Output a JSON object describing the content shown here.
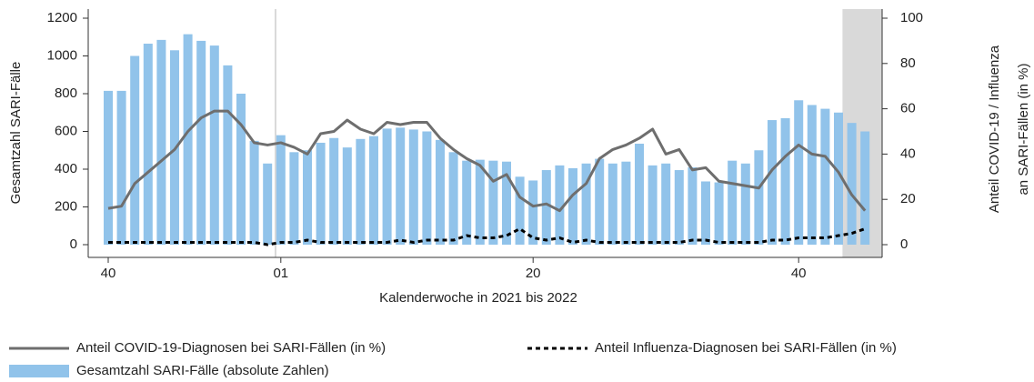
{
  "chart_data": {
    "type": "combo",
    "xlabel": "Kalenderwoche in 2021 bis 2022",
    "ylabel": "Gesamtzahl SARI-Fälle",
    "y2label": [
      "Anteil COVID-19 / Influenza",
      "an SARI-Fällen (in %)"
    ],
    "categories": [
      "40",
      null,
      null,
      null,
      null,
      null,
      null,
      null,
      null,
      null,
      null,
      null,
      null,
      "01",
      null,
      null,
      null,
      null,
      null,
      null,
      null,
      null,
      null,
      null,
      null,
      null,
      null,
      null,
      null,
      null,
      null,
      null,
      "20",
      null,
      null,
      null,
      null,
      null,
      null,
      null,
      null,
      null,
      null,
      null,
      null,
      null,
      null,
      null,
      null,
      null,
      null,
      null,
      "40",
      null,
      null,
      null,
      null,
      null
    ],
    "ylim": [
      0,
      1200
    ],
    "yticks": [
      0,
      200,
      400,
      600,
      800,
      1000,
      1200
    ],
    "y2lim": [
      0,
      100
    ],
    "y2ticks": [
      0,
      20,
      40,
      60,
      80,
      100
    ],
    "series": [
      {
        "name": "Gesamtzahl SARI-Fälle (absolute Zahlen)",
        "type": "bar",
        "color": "#91c3ea",
        "values": [
          815,
          815,
          1000,
          1065,
          1085,
          1030,
          1115,
          1080,
          1055,
          950,
          800,
          550,
          430,
          580,
          490,
          500,
          540,
          565,
          515,
          560,
          575,
          615,
          620,
          610,
          600,
          555,
          490,
          445,
          450,
          445,
          440,
          360,
          340,
          395,
          420,
          405,
          430,
          455,
          430,
          440,
          535,
          420,
          430,
          395,
          410,
          335,
          330,
          445,
          430,
          500,
          660,
          670,
          765,
          740,
          720,
          700,
          645,
          600
        ]
      },
      {
        "name": "Anteil COVID-19-Diagnosen bei SARI-Fällen (in %)",
        "type": "line",
        "axis": "y2",
        "color": "#6e6e6e",
        "dashed": false,
        "values": [
          16,
          17,
          27,
          32,
          37,
          42,
          50,
          56,
          59,
          59,
          53,
          45,
          44,
          45,
          43,
          40,
          49,
          50,
          55,
          51,
          49,
          54,
          53,
          54,
          54,
          47,
          42,
          38,
          35,
          28,
          31,
          21,
          17,
          18,
          15,
          22,
          27,
          38,
          42,
          44,
          47,
          51,
          40,
          42,
          33,
          34,
          28,
          27,
          26,
          25,
          33,
          39,
          44,
          40,
          39,
          32,
          22,
          15
        ]
      },
      {
        "name": "Anteil Influenza-Diagnosen bei SARI-Fällen (in %)",
        "type": "line",
        "axis": "y2",
        "color": "#000000",
        "dashed": true,
        "values": [
          1,
          1,
          1,
          1,
          1,
          1,
          1,
          1,
          1,
          1,
          1,
          1,
          0,
          1,
          1,
          2,
          1,
          1,
          1,
          1,
          1,
          1,
          2,
          1,
          2,
          2,
          2,
          4,
          3,
          3,
          4,
          7,
          3,
          2,
          3,
          1,
          2,
          1,
          1,
          1,
          1,
          1,
          1,
          1,
          2,
          2,
          1,
          1,
          1,
          1,
          2,
          2,
          3,
          3,
          3,
          4,
          5,
          7
        ]
      }
    ]
  }
}
